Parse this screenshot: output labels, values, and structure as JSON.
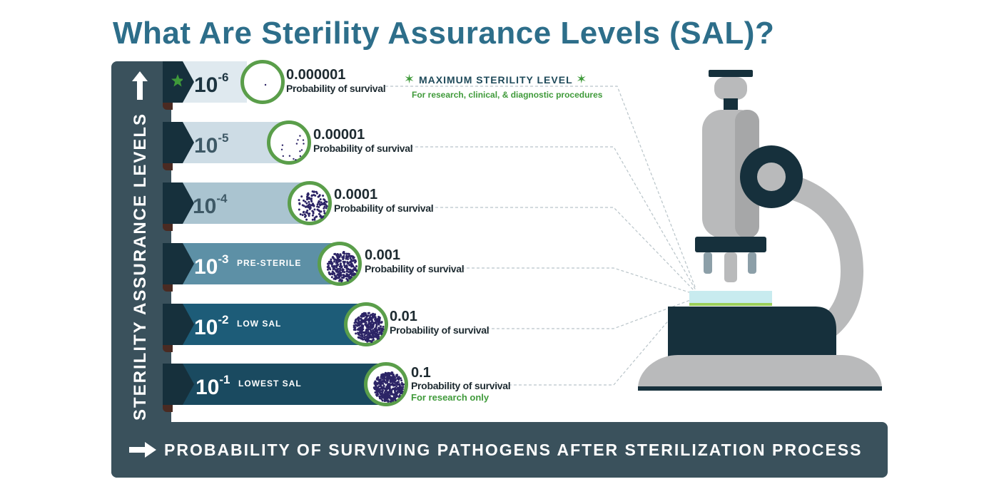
{
  "title": "What Are Sterility Assurance Levels (SAL)?",
  "y_axis_label": "STERILITY ASSURANCE LEVELS",
  "x_axis_label": "PROBABILITY OF SURVIVING PATHOGENS AFTER STERILIZATION PROCESS",
  "max_level": {
    "label": "MAXIMUM STERILITY LEVEL",
    "sublabel": "For research, clinical, & diagnostic procedures",
    "star_icon": "star-icon"
  },
  "levels": [
    {
      "base": "10",
      "exponent": "-6",
      "tag": "",
      "value": "0.000001",
      "caption": "Probability of survival",
      "note": "",
      "band_color": "#dfe9ef",
      "text_color": "#1d3440",
      "dot_count": 1
    },
    {
      "base": "10",
      "exponent": "-5",
      "tag": "",
      "value": "0.00001",
      "caption": "Probability of survival",
      "note": "",
      "band_color": "#cddce5",
      "text_color": "#3e5966",
      "dot_count": 14
    },
    {
      "base": "10",
      "exponent": "-4",
      "tag": "",
      "value": "0.0001",
      "caption": "Probability of survival",
      "note": "",
      "band_color": "#aac4d0",
      "text_color": "#3e5966",
      "dot_count": 120
    },
    {
      "base": "10",
      "exponent": "-3",
      "tag": "PRE-STERILE",
      "value": "0.001",
      "caption": "Probability of survival",
      "note": "",
      "band_color": "#5d90a6",
      "text_color": "#ffffff",
      "dot_count": 260
    },
    {
      "base": "10",
      "exponent": "-2",
      "tag": "LOW SAL",
      "value": "0.01",
      "caption": "Probability of survival",
      "note": "",
      "band_color": "#1d5c78",
      "text_color": "#ffffff",
      "dot_count": 340
    },
    {
      "base": "10",
      "exponent": "-1",
      "tag": "LOWEST SAL",
      "value": "0.1",
      "caption": "Probability of survival",
      "note": "For research only",
      "band_color": "#1a4a60",
      "text_color": "#ffffff",
      "dot_count": 400
    }
  ],
  "colors": {
    "frame": "#3a515c",
    "title": "#2d6e8a",
    "accent_green": "#3f9a3a",
    "circle_ring": "#5a9e4a",
    "dots": "#2c2466"
  },
  "icons": {
    "up_arrow": "arrow-up-icon",
    "right_arrow": "arrow-right-icon",
    "microscope": "microscope-illustration"
  }
}
